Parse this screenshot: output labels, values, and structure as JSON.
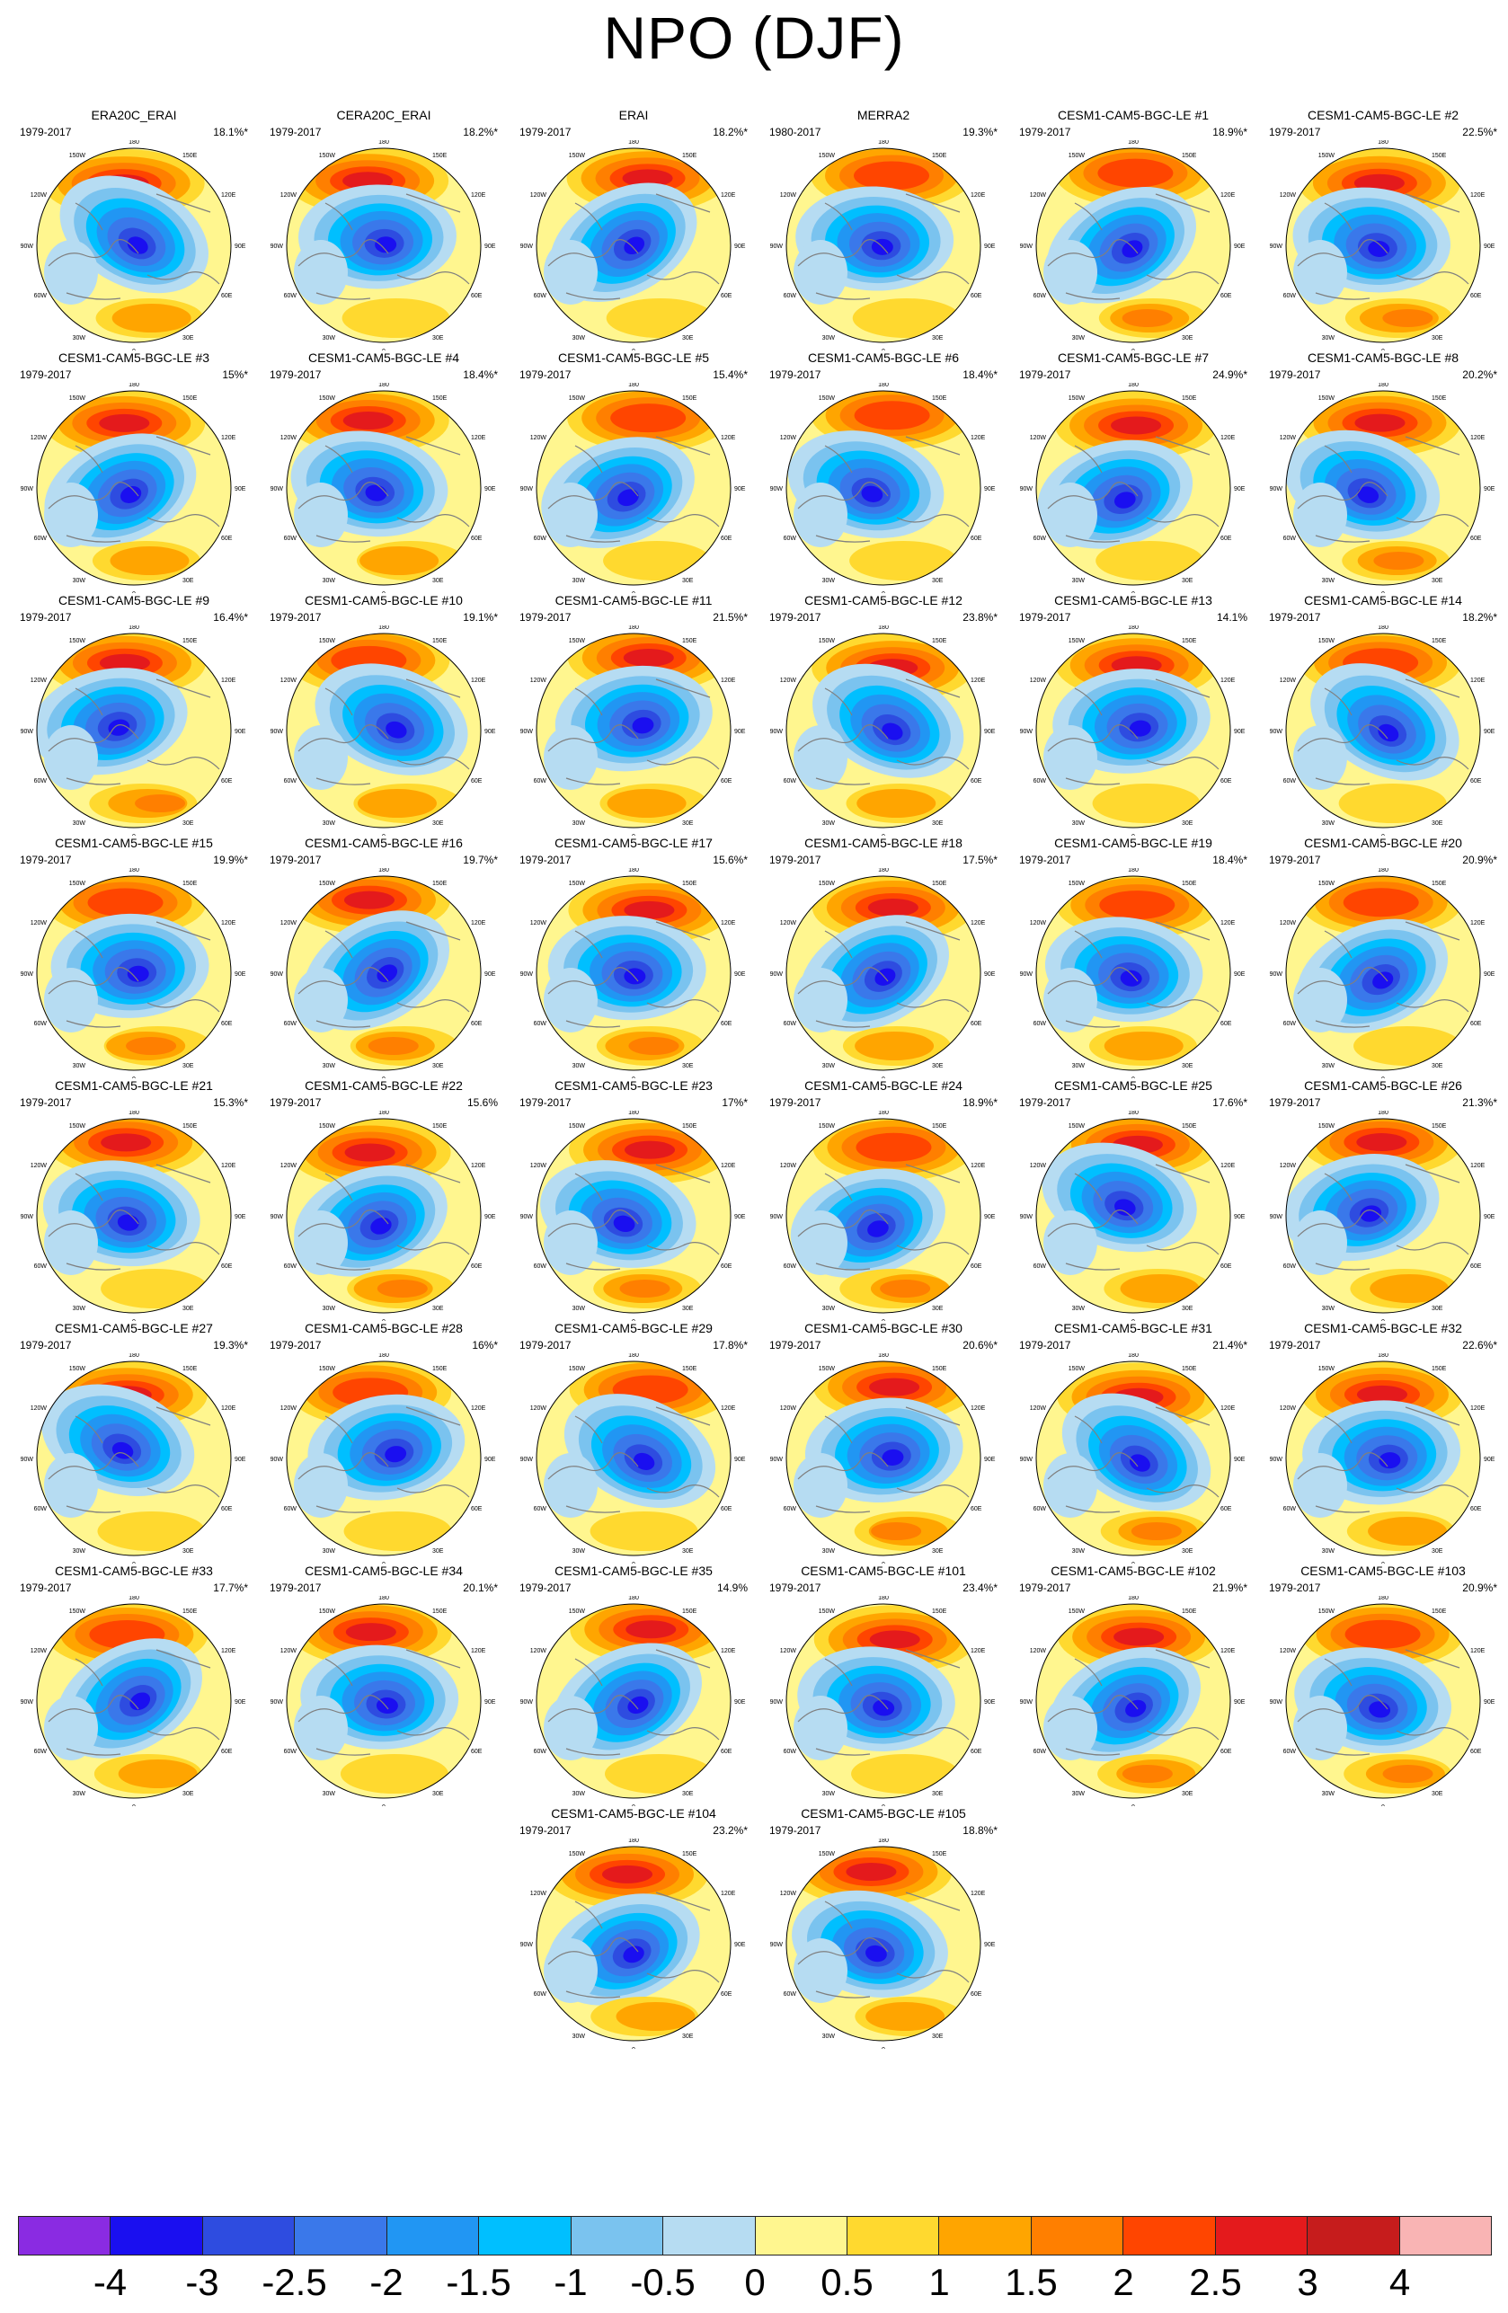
{
  "title": "NPO (DJF)",
  "colors": {
    "levels": [
      "#8a2be2",
      "#1a0ff0",
      "#2e4ce0",
      "#3a78ea",
      "#2196f3",
      "#00bfff",
      "#7ac3ef",
      "#b6dcf2",
      "#fff68f",
      "#ffd92f",
      "#ffa500",
      "#ff7f00",
      "#ff4500",
      "#e41a1c",
      "#c61c1c",
      "#f9b4b4"
    ],
    "coastline": "#7f7f7f",
    "grid": "#000000"
  },
  "chart_data": {
    "type": "heatmap",
    "projection": "north polar stereographic",
    "colorbar_ticks": [
      "-4",
      "-3",
      "-2.5",
      "-2",
      "-1.5",
      "-1",
      "-0.5",
      "0",
      "0.5",
      "1",
      "1.5",
      "2",
      "2.5",
      "3",
      "4"
    ],
    "map_lon_labels": {
      "top": "180",
      "upper_left": "150W",
      "upper_right": "150E",
      "left_top": "120W",
      "right_top": "120E",
      "left": "90W",
      "right": "90E",
      "left_bottom": "60W",
      "right_bottom": "60E",
      "lower_left": "30W",
      "lower_right": "30E",
      "bottom": "0"
    },
    "panels": [
      {
        "name": "ERA20C_ERAI",
        "period": "1979-2017",
        "pct": "18.1%*"
      },
      {
        "name": "CERA20C_ERAI",
        "period": "1979-2017",
        "pct": "18.2%*"
      },
      {
        "name": "ERAI",
        "period": "1979-2017",
        "pct": "18.2%*"
      },
      {
        "name": "MERRA2",
        "period": "1980-2017",
        "pct": "19.3%*"
      },
      {
        "name": "CESM1-CAM5-BGC-LE #1",
        "period": "1979-2017",
        "pct": "18.9%*"
      },
      {
        "name": "CESM1-CAM5-BGC-LE #2",
        "period": "1979-2017",
        "pct": "22.5%*"
      },
      {
        "name": "CESM1-CAM5-BGC-LE #3",
        "period": "1979-2017",
        "pct": "15%*"
      },
      {
        "name": "CESM1-CAM5-BGC-LE #4",
        "period": "1979-2017",
        "pct": "18.4%*"
      },
      {
        "name": "CESM1-CAM5-BGC-LE #5",
        "period": "1979-2017",
        "pct": "15.4%*"
      },
      {
        "name": "CESM1-CAM5-BGC-LE #6",
        "period": "1979-2017",
        "pct": "18.4%*"
      },
      {
        "name": "CESM1-CAM5-BGC-LE #7",
        "period": "1979-2017",
        "pct": "24.9%*"
      },
      {
        "name": "CESM1-CAM5-BGC-LE #8",
        "period": "1979-2017",
        "pct": "20.2%*"
      },
      {
        "name": "CESM1-CAM5-BGC-LE #9",
        "period": "1979-2017",
        "pct": "16.4%*"
      },
      {
        "name": "CESM1-CAM5-BGC-LE #10",
        "period": "1979-2017",
        "pct": "19.1%*"
      },
      {
        "name": "CESM1-CAM5-BGC-LE #11",
        "period": "1979-2017",
        "pct": "21.5%*"
      },
      {
        "name": "CESM1-CAM5-BGC-LE #12",
        "period": "1979-2017",
        "pct": "23.8%*"
      },
      {
        "name": "CESM1-CAM5-BGC-LE #13",
        "period": "1979-2017",
        "pct": "14.1%"
      },
      {
        "name": "CESM1-CAM5-BGC-LE #14",
        "period": "1979-2017",
        "pct": "18.2%*"
      },
      {
        "name": "CESM1-CAM5-BGC-LE #15",
        "period": "1979-2017",
        "pct": "19.9%*"
      },
      {
        "name": "CESM1-CAM5-BGC-LE #16",
        "period": "1979-2017",
        "pct": "19.7%*"
      },
      {
        "name": "CESM1-CAM5-BGC-LE #17",
        "period": "1979-2017",
        "pct": "15.6%*"
      },
      {
        "name": "CESM1-CAM5-BGC-LE #18",
        "period": "1979-2017",
        "pct": "17.5%*"
      },
      {
        "name": "CESM1-CAM5-BGC-LE #19",
        "period": "1979-2017",
        "pct": "18.4%*"
      },
      {
        "name": "CESM1-CAM5-BGC-LE #20",
        "period": "1979-2017",
        "pct": "20.9%*"
      },
      {
        "name": "CESM1-CAM5-BGC-LE #21",
        "period": "1979-2017",
        "pct": "15.3%*"
      },
      {
        "name": "CESM1-CAM5-BGC-LE #22",
        "period": "1979-2017",
        "pct": "15.6%"
      },
      {
        "name": "CESM1-CAM5-BGC-LE #23",
        "period": "1979-2017",
        "pct": "17%*"
      },
      {
        "name": "CESM1-CAM5-BGC-LE #24",
        "period": "1979-2017",
        "pct": "18.9%*"
      },
      {
        "name": "CESM1-CAM5-BGC-LE #25",
        "period": "1979-2017",
        "pct": "17.6%*"
      },
      {
        "name": "CESM1-CAM5-BGC-LE #26",
        "period": "1979-2017",
        "pct": "21.3%*"
      },
      {
        "name": "CESM1-CAM5-BGC-LE #27",
        "period": "1979-2017",
        "pct": "19.3%*"
      },
      {
        "name": "CESM1-CAM5-BGC-LE #28",
        "period": "1979-2017",
        "pct": "16%*"
      },
      {
        "name": "CESM1-CAM5-BGC-LE #29",
        "period": "1979-2017",
        "pct": "17.8%*"
      },
      {
        "name": "CESM1-CAM5-BGC-LE #30",
        "period": "1979-2017",
        "pct": "20.6%*"
      },
      {
        "name": "CESM1-CAM5-BGC-LE #31",
        "period": "1979-2017",
        "pct": "21.4%*"
      },
      {
        "name": "CESM1-CAM5-BGC-LE #32",
        "period": "1979-2017",
        "pct": "22.6%*"
      },
      {
        "name": "CESM1-CAM5-BGC-LE #33",
        "period": "1979-2017",
        "pct": "17.7%*"
      },
      {
        "name": "CESM1-CAM5-BGC-LE #34",
        "period": "1979-2017",
        "pct": "20.1%*"
      },
      {
        "name": "CESM1-CAM5-BGC-LE #35",
        "period": "1979-2017",
        "pct": "14.9%"
      },
      {
        "name": "CESM1-CAM5-BGC-LE #101",
        "period": "1979-2017",
        "pct": "23.4%*"
      },
      {
        "name": "CESM1-CAM5-BGC-LE #102",
        "period": "1979-2017",
        "pct": "21.9%*"
      },
      {
        "name": "CESM1-CAM5-BGC-LE #103",
        "period": "1979-2017",
        "pct": "20.9%*"
      },
      {
        "name": "CESM1-CAM5-BGC-LE #104",
        "period": "1979-2017",
        "pct": "23.2%*"
      },
      {
        "name": "CESM1-CAM5-BGC-LE #105",
        "period": "1979-2017",
        "pct": "18.8%*"
      }
    ]
  }
}
